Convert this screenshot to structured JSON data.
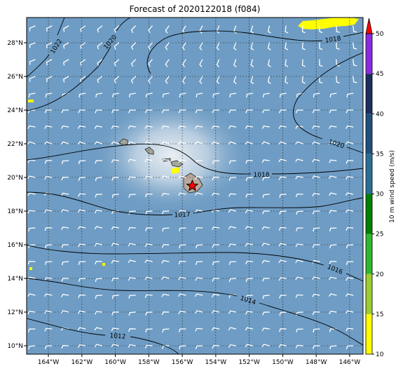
{
  "title": "Forecast of 2020122018 (f084)",
  "map": {
    "lon_range": [
      -165.3,
      -145.2
    ],
    "lat_range": [
      9.5,
      29.5
    ],
    "lon_ticks": [
      -164,
      -162,
      -160,
      -158,
      -156,
      -154,
      -152,
      -150,
      -148,
      -146
    ],
    "lon_tick_labels": [
      "164°W",
      "162°W",
      "160°W",
      "158°W",
      "156°W",
      "154°W",
      "152°W",
      "150°W",
      "148°W",
      "146°W"
    ],
    "lat_ticks": [
      10,
      12,
      14,
      16,
      18,
      20,
      22,
      24,
      26,
      28
    ],
    "lat_tick_labels": [
      "10°N",
      "12°N",
      "14°N",
      "16°N",
      "18°N",
      "20°N",
      "22°N",
      "24°N",
      "26°N",
      "28°N"
    ],
    "grid": true,
    "ocean_color": "#6e9cc4",
    "marker": {
      "symbol": "star",
      "lon": -155.4,
      "lat": 19.5,
      "color": "#ff0000"
    },
    "contour_labels": [
      "1022",
      "1020",
      "1018",
      "1020",
      "1018",
      "1017",
      "1016",
      "1014",
      "1012"
    ]
  },
  "colorbar": {
    "label": "10 m wind speed (m/s)",
    "ticks": [
      "10",
      "15",
      "20",
      "25",
      "30",
      "35",
      "40",
      "45",
      "50"
    ],
    "colors": [
      "#ffff00",
      "#9acd32",
      "#2eb82e",
      "#008000",
      "#2a6e96",
      "#1f4f7a",
      "#1b2d5e",
      "#5c2d91",
      "#8a2be2"
    ],
    "extend_color": "#ff0000"
  }
}
